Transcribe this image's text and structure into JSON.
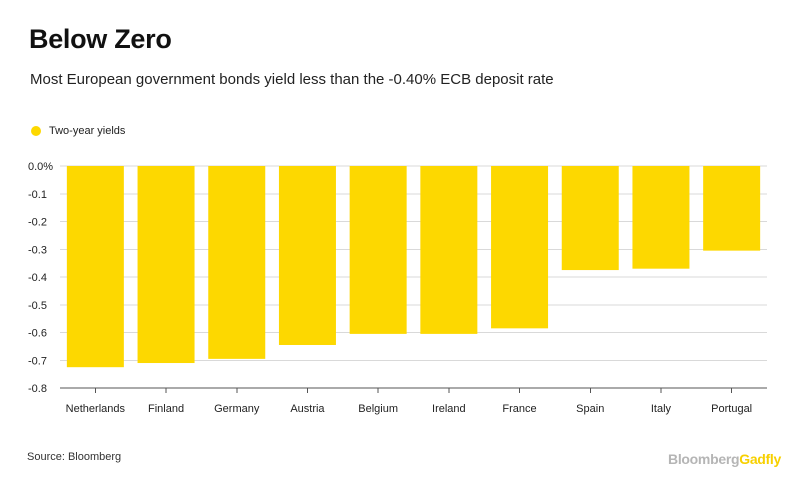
{
  "header": {
    "title": "Below Zero",
    "subtitle": "Most European government bonds yield less than the -0.40% ECB deposit rate"
  },
  "footer": {
    "source": "Source: Bloomberg",
    "brand_part1": "Bloomberg",
    "brand_part2": "Gadfly"
  },
  "colors": {
    "bar": "#fdd800",
    "grid": "#d9d9d9",
    "axis": "#555555",
    "brand_gray": "#b5b5b5",
    "brand_yellow": "#f7d000"
  },
  "chart_data": {
    "type": "bar",
    "title": "Below Zero",
    "subtitle": "Most European government bonds yield less than the -0.40% ECB deposit rate",
    "categories": [
      "Netherlands",
      "Finland",
      "Germany",
      "Austria",
      "Belgium",
      "Ireland",
      "France",
      "Spain",
      "Italy",
      "Portugal"
    ],
    "series": [
      {
        "name": "Two-year yields",
        "values": [
          -0.725,
          -0.71,
          -0.695,
          -0.645,
          -0.605,
          -0.605,
          -0.585,
          -0.375,
          -0.37,
          -0.305
        ]
      }
    ],
    "ylim": [
      -0.8,
      0
    ],
    "yticks": [
      0,
      -0.1,
      -0.2,
      -0.3,
      -0.4,
      -0.5,
      -0.6,
      -0.7,
      -0.8
    ],
    "ytick_labels": [
      "0.0%",
      "-0.1",
      "-0.2",
      "-0.3",
      "-0.4",
      "-0.5",
      "-0.6",
      "-0.7",
      "-0.8"
    ],
    "grid": true,
    "legend_position": "top-left"
  }
}
